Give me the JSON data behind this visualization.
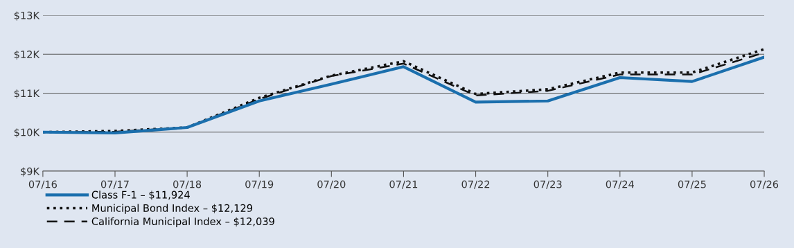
{
  "chart_data": {
    "type": "line",
    "categories": [
      "07/16",
      "07/17",
      "07/18",
      "07/19",
      "07/20",
      "07/21",
      "07/22",
      "07/23",
      "07/24",
      "07/25",
      "07/26"
    ],
    "series": [
      {
        "name": "Class F-1 – $11,924",
        "color": "#1b6fad",
        "line_style": "solid",
        "values": [
          10000,
          9980,
          10120,
          10800,
          11230,
          11680,
          10770,
          10800,
          11400,
          11300,
          11924
        ]
      },
      {
        "name": "Municipal Bond Index – $12,129",
        "color": "#111111",
        "line_style": "dotted",
        "values": [
          10000,
          10030,
          10120,
          10880,
          11450,
          11820,
          10980,
          11100,
          11530,
          11530,
          12129
        ]
      },
      {
        "name": "California Municipal Index – $12,039",
        "color": "#111111",
        "line_style": "dashed",
        "values": [
          10000,
          10010,
          10120,
          10850,
          11440,
          11760,
          10940,
          11060,
          11480,
          11480,
          12039
        ]
      }
    ],
    "ylim": [
      9000,
      13000
    ],
    "yticks": [
      {
        "value": 9000,
        "label": "$9K"
      },
      {
        "value": 10000,
        "label": "$10K"
      },
      {
        "value": 11000,
        "label": "$11K"
      },
      {
        "value": 12000,
        "label": "$12K"
      },
      {
        "value": 13000,
        "label": "$13K"
      }
    ],
    "grid": "y",
    "legend": "bottom",
    "marker": "none"
  }
}
